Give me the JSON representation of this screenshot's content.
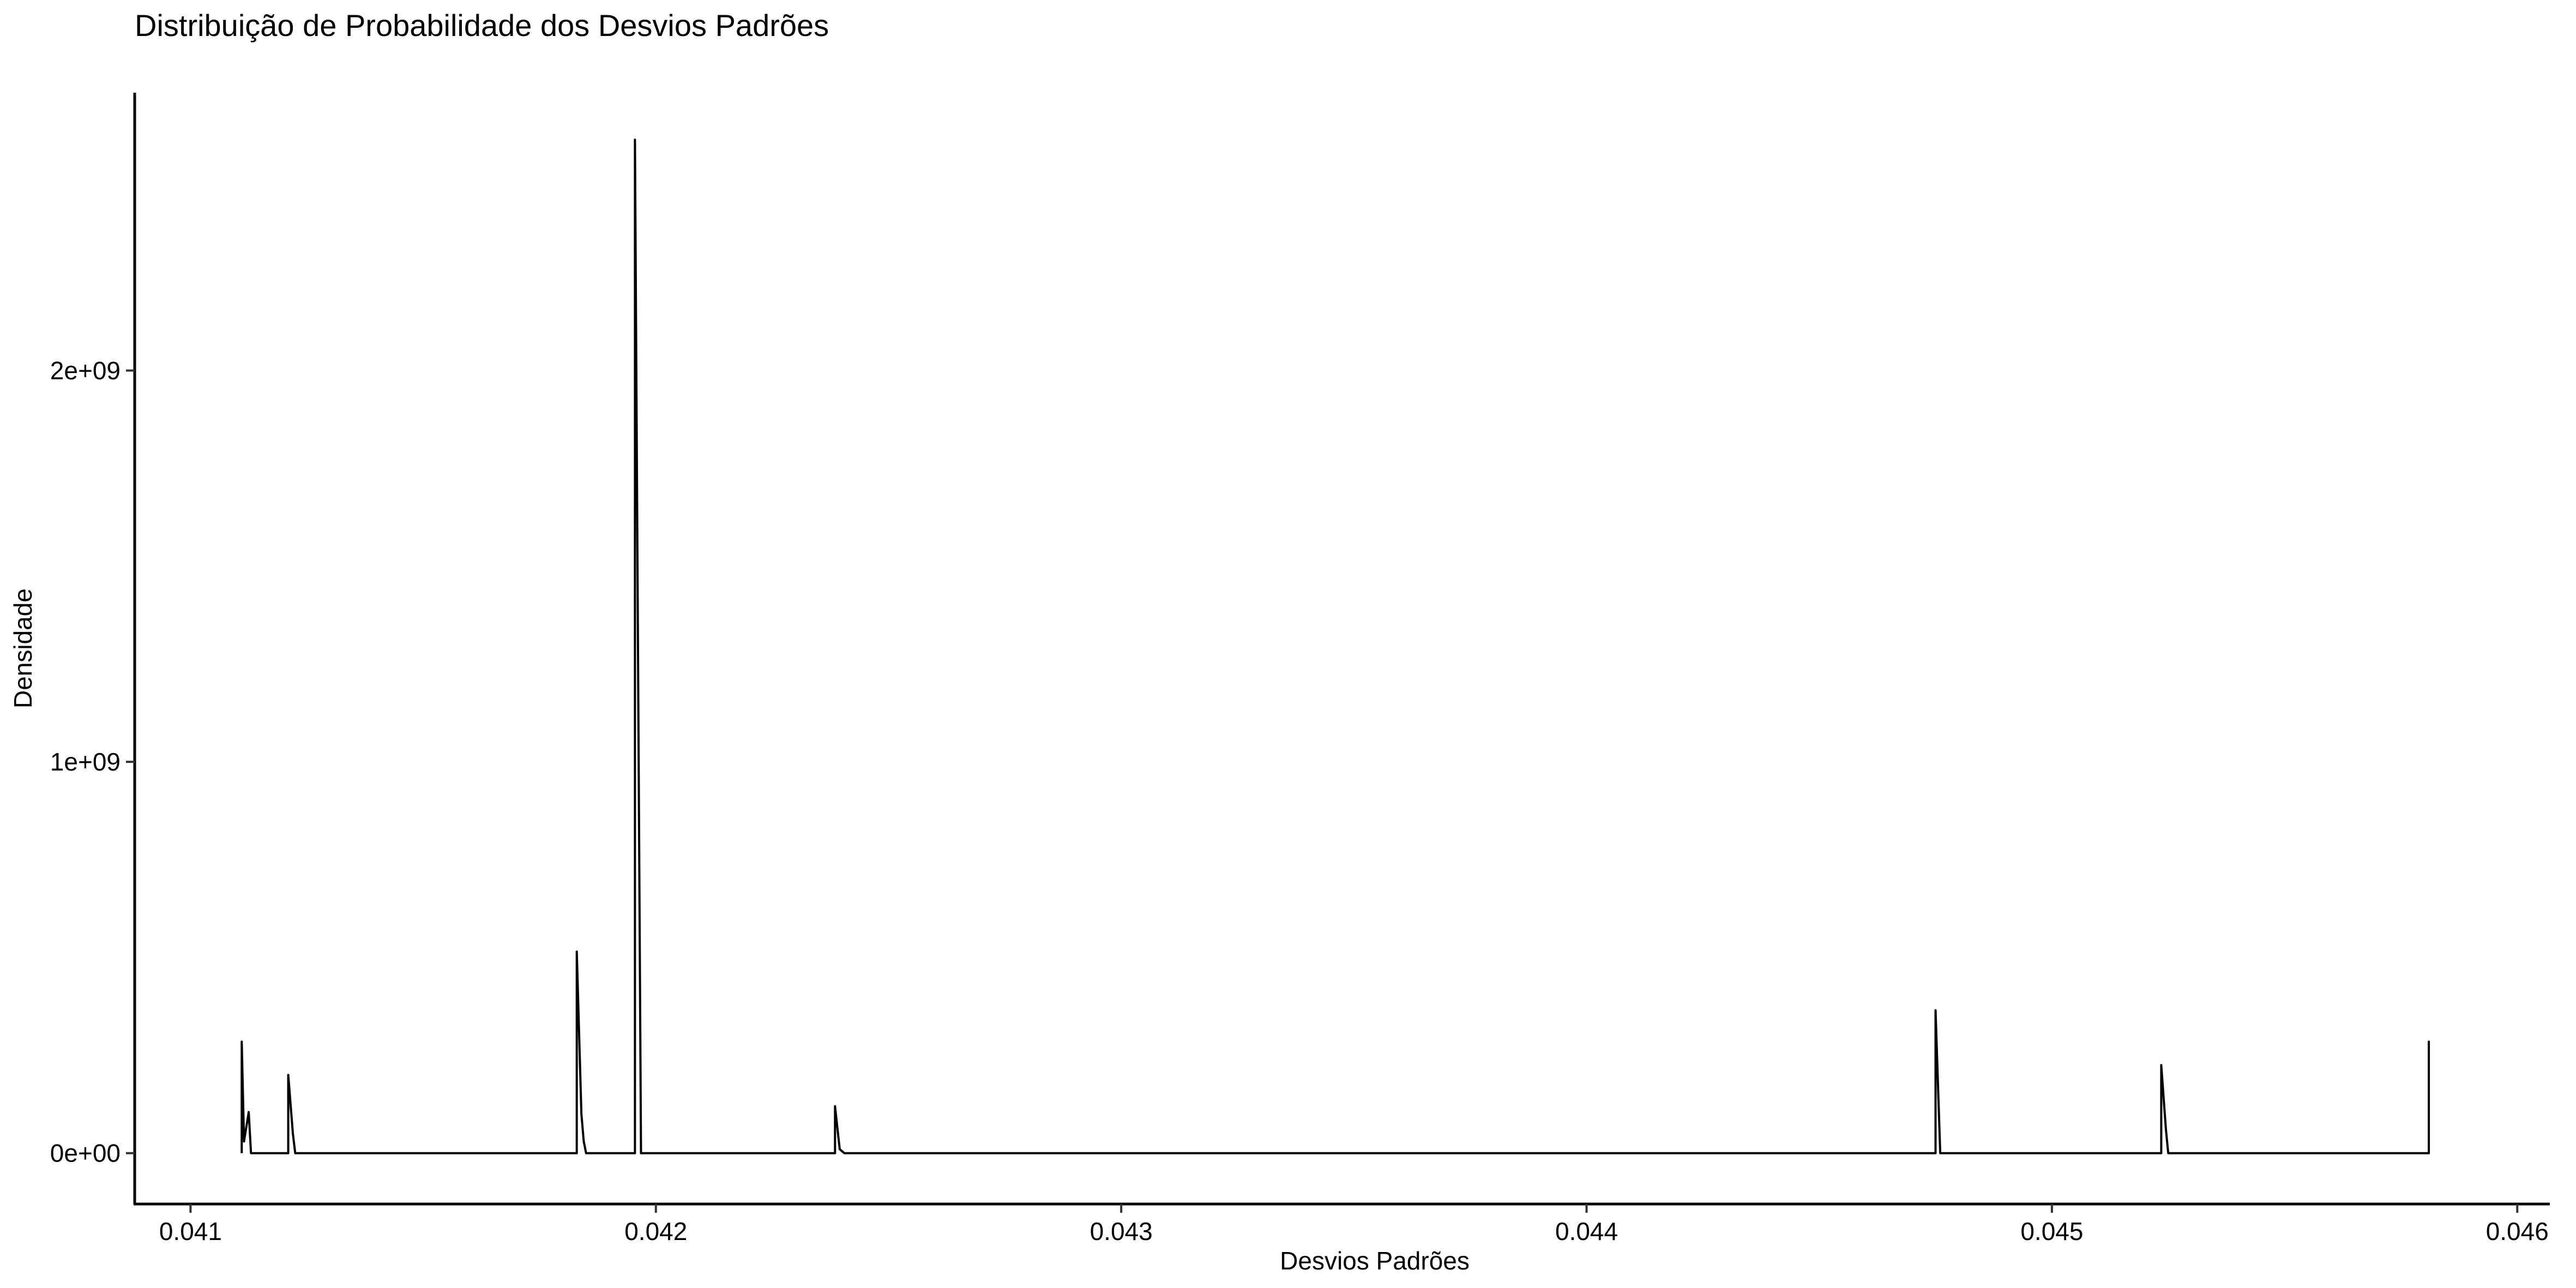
{
  "chart_data": {
    "type": "line",
    "title": "Distribuição de Probabilidade dos Desvios Padrões",
    "xlabel": "Desvios Padrões",
    "ylabel": "Densidade",
    "xlim": [
      0.04088,
      0.04607
    ],
    "ylim": [
      -130000000,
      2710000000
    ],
    "x_ticks": [
      0.041,
      0.042,
      0.043,
      0.044,
      0.045,
      0.046
    ],
    "x_tick_labels": [
      "0.041",
      "0.042",
      "0.043",
      "0.044",
      "0.045",
      "0.046"
    ],
    "y_ticks": [
      0,
      1000000000,
      2000000000
    ],
    "y_tick_labels": [
      "0e+00",
      "1e+09",
      "2e+09"
    ],
    "grid": false,
    "line_color": "#000000",
    "series": [
      {
        "x": [
          0.04111,
          0.04111,
          0.041115,
          0.041125,
          0.04113,
          0.04121,
          0.04121,
          0.04122,
          0.041225,
          0.04183,
          0.04183,
          0.04184,
          0.041845,
          0.04185,
          0.04185,
          0.041955,
          0.041955,
          0.041968,
          0.04198,
          0.04198,
          0.042385,
          0.042385,
          0.042395,
          0.042405,
          0.042405,
          0.04475,
          0.04475,
          0.04476,
          0.044772,
          0.044772,
          0.045235,
          0.045235,
          0.045245,
          0.04525,
          0.045255,
          0.04581,
          0.04581,
          0.04581
        ],
        "y": [
          0,
          285000000,
          30000000,
          105000000,
          0,
          0,
          200000000,
          50000000,
          0,
          0,
          515000000,
          100000000,
          30000000,
          0,
          0,
          0,
          2590000000,
          0,
          0,
          0,
          0,
          120000000,
          10000000,
          0,
          0,
          0,
          365000000,
          0,
          0,
          0,
          0,
          225000000,
          60000000,
          0,
          0,
          0,
          285000000,
          0
        ]
      }
    ]
  }
}
